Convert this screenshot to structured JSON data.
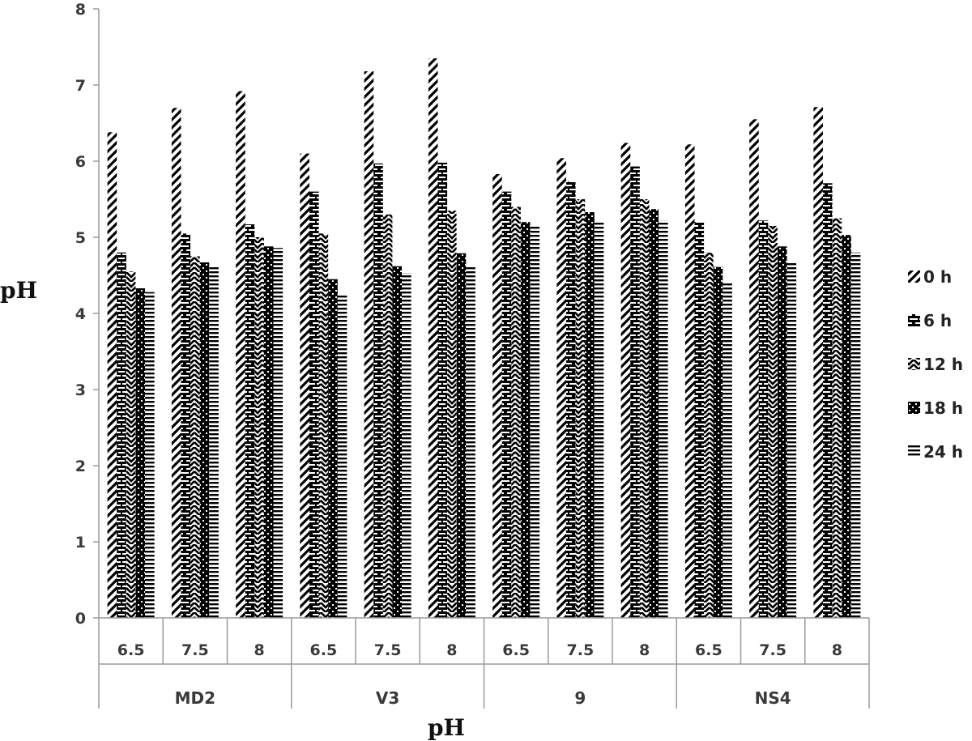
{
  "chart_data": {
    "type": "bar",
    "ylabel": "pH",
    "xlabel": "pH",
    "ylim": [
      0,
      8
    ],
    "yticks": [
      0,
      1,
      2,
      3,
      4,
      5,
      6,
      7,
      8
    ],
    "groups": [
      "MD2",
      "V3",
      "9",
      "NS4"
    ],
    "categories": [
      "6.5",
      "7.5",
      "8",
      "6.5",
      "7.5",
      "8",
      "6.5",
      "7.5",
      "8",
      "6.5",
      "7.5",
      "8"
    ],
    "legend_position": "right",
    "grid": false,
    "series": [
      {
        "name": "0 h",
        "pattern": "diagonal",
        "values": [
          6.38,
          6.7,
          6.92,
          6.1,
          7.18,
          7.35,
          5.83,
          6.04,
          6.24,
          6.22,
          6.55,
          6.71
        ]
      },
      {
        "name": "6 h",
        "pattern": "brick",
        "values": [
          4.8,
          5.05,
          5.17,
          5.6,
          5.97,
          5.98,
          5.6,
          5.73,
          5.93,
          5.2,
          5.22,
          5.71
        ]
      },
      {
        "name": "12 h",
        "pattern": "wave",
        "values": [
          4.55,
          4.75,
          5.0,
          5.05,
          5.3,
          5.35,
          5.4,
          5.5,
          5.5,
          4.8,
          5.15,
          5.25
        ]
      },
      {
        "name": "18 h",
        "pattern": "checker",
        "values": [
          4.33,
          4.67,
          4.88,
          4.45,
          4.62,
          4.79,
          5.2,
          5.33,
          5.37,
          4.61,
          4.88,
          5.03
        ]
      },
      {
        "name": "24 h",
        "pattern": "lines",
        "values": [
          4.28,
          4.62,
          4.86,
          4.25,
          4.53,
          4.62,
          5.15,
          5.2,
          5.22,
          4.4,
          4.67,
          4.8
        ]
      }
    ]
  }
}
